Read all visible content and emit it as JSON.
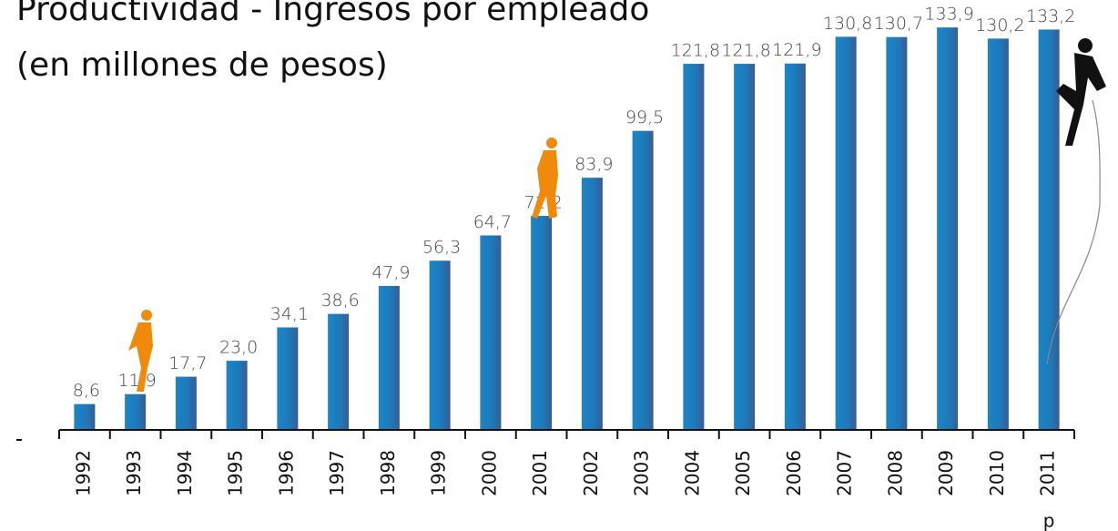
{
  "chart_data": {
    "type": "bar",
    "title": "Productividad - Ingresos por empleado",
    "subtitle": "(en millones de pesos)",
    "categories": [
      "1992",
      "1993",
      "1994",
      "1995",
      "1996",
      "1997",
      "1998",
      "1999",
      "2000",
      "2001",
      "2002",
      "2003",
      "2004",
      "2005",
      "2006",
      "2007",
      "2008",
      "2009",
      "2010",
      "2011"
    ],
    "category_note": "p",
    "values": [
      8.6,
      11.9,
      17.7,
      23.0,
      34.1,
      38.6,
      47.9,
      56.3,
      64.7,
      71.2,
      83.9,
      99.5,
      121.8,
      121.8,
      121.9,
      130.8,
      130.7,
      133.9,
      130.2,
      133.2
    ],
    "value_labels": [
      "8,6",
      "11,9",
      "17,7",
      "23,0",
      "34,1",
      "38,6",
      "47,9",
      "56,3",
      "64,7",
      "71,2",
      "83,9",
      "99,5",
      "121,8",
      "121,8",
      "121,9",
      "130,8",
      "130,7",
      "133,9",
      "130,2",
      "133,2"
    ],
    "color": "#1b80c4",
    "ylim": [
      0,
      140
    ]
  }
}
